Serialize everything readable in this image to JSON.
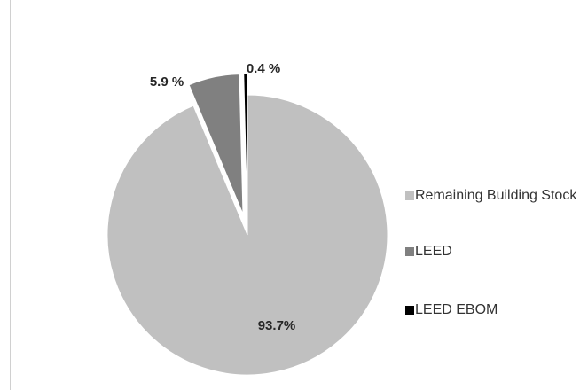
{
  "chart_data": {
    "type": "pie",
    "title": "",
    "categories": [
      "Remaining Building Stock",
      "LEED",
      "LEED EBOM"
    ],
    "values": [
      93.7,
      5.9,
      0.4
    ],
    "data_labels": [
      "93.7%",
      "5.9 %",
      "0.4 %"
    ],
    "colors": [
      "#c0c0c0",
      "#808080",
      "#000000"
    ],
    "exploded": [
      false,
      true,
      true
    ],
    "legend_position": "right"
  },
  "legend": {
    "items": [
      {
        "label": "Remaining Building Stock",
        "color": "#c0c0c0"
      },
      {
        "label": "LEED",
        "color": "#808080"
      },
      {
        "label": "LEED EBOM",
        "color": "#000000"
      }
    ]
  }
}
